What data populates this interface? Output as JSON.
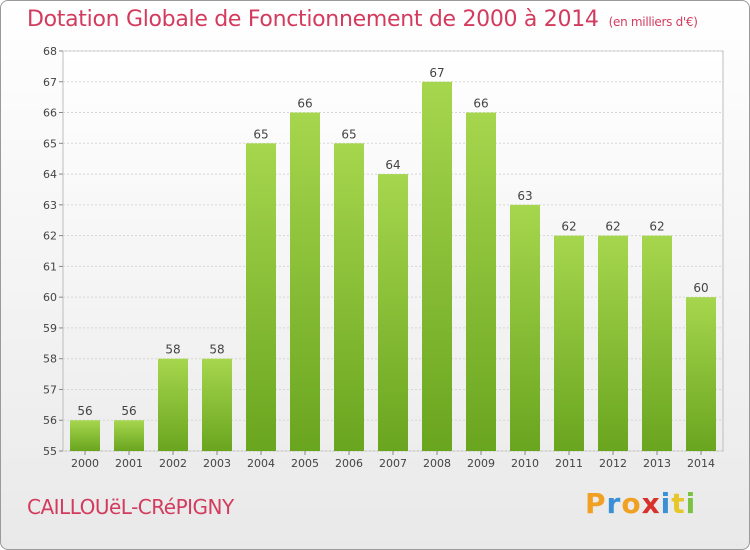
{
  "header": {
    "title": "Dotation Globale de Fonctionnement de 2000 à 2014",
    "subtitle": "(en milliers d'€)"
  },
  "footer": {
    "commune": "CAILLOUëL-CRéPIGNY",
    "logo_letters": [
      "P",
      "r",
      "o",
      "x",
      "i",
      "t",
      "i"
    ],
    "logo_colors": [
      "#f0a023",
      "#3a8fd6",
      "#f0a023",
      "#d8302a",
      "#3a8fd6",
      "#e6c72a",
      "#7cc242"
    ]
  },
  "chart_data": {
    "type": "bar",
    "categories": [
      "2000",
      "2001",
      "2002",
      "2003",
      "2004",
      "2005",
      "2006",
      "2007",
      "2008",
      "2009",
      "2010",
      "2011",
      "2012",
      "2013",
      "2014"
    ],
    "values": [
      56,
      56,
      58,
      58,
      65,
      66,
      65,
      64,
      67,
      66,
      63,
      62,
      62,
      62,
      60
    ],
    "data_labels": [
      "56",
      "56",
      "58",
      "58",
      "65",
      "66",
      "65",
      "64",
      "67",
      "66",
      "63",
      "62",
      "62",
      "62",
      "60"
    ],
    "ylim": [
      55,
      68
    ],
    "yticks": [
      55,
      56,
      57,
      58,
      59,
      60,
      61,
      62,
      63,
      64,
      65,
      66,
      67,
      68
    ],
    "ytick_labels": [
      "55",
      "56",
      "57",
      "58",
      "59",
      "60",
      "61",
      "62",
      "63",
      "64",
      "65",
      "66",
      "67",
      "68"
    ],
    "grid": true,
    "colors": {
      "bar_top": "#a6d64e",
      "bar_bottom": "#6aa51f",
      "title": "#d33b5e"
    }
  }
}
